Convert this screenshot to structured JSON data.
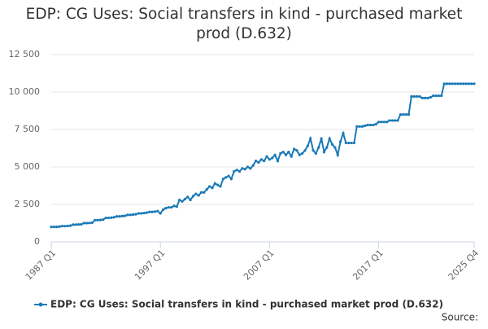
{
  "chart_data": {
    "type": "line",
    "title": "EDP: CG Uses: Social transfers in kind - purchased market prod (D.632)",
    "source": "Source:",
    "categories": [
      "1987 Q1",
      null,
      null,
      null,
      null,
      null,
      null,
      null,
      null,
      null,
      null,
      null,
      null,
      null,
      null,
      null,
      null,
      null,
      null,
      null,
      null,
      null,
      null,
      null,
      null,
      null,
      null,
      null,
      null,
      null,
      null,
      null,
      null,
      null,
      null,
      null,
      null,
      null,
      null,
      null,
      "1997 Q1",
      null,
      null,
      null,
      null,
      null,
      null,
      null,
      null,
      null,
      null,
      null,
      null,
      null,
      null,
      null,
      null,
      null,
      null,
      null,
      null,
      null,
      null,
      null,
      null,
      null,
      null,
      null,
      null,
      null,
      null,
      null,
      null,
      null,
      null,
      null,
      null,
      null,
      null,
      null,
      "2007 Q1",
      null,
      null,
      null,
      null,
      null,
      null,
      null,
      null,
      null,
      null,
      null,
      null,
      null,
      null,
      null,
      null,
      null,
      null,
      null,
      null,
      null,
      null,
      null,
      null,
      null,
      null,
      null,
      null,
      null,
      null,
      null,
      null,
      null,
      null,
      null,
      null,
      null,
      null,
      null,
      "2017 Q1",
      null,
      null,
      null,
      null,
      null,
      null,
      null,
      null,
      null,
      null,
      null,
      null,
      null,
      null,
      null,
      null,
      null,
      null,
      null,
      null,
      null,
      null,
      null,
      null,
      null,
      null,
      null,
      null,
      null,
      null,
      null,
      null,
      null,
      null,
      "2025 Q4"
    ],
    "series": [
      {
        "name": "EDP: CG Uses: Social transfers in kind - purchased market prod (D.632)",
        "color": "#1a7ab8",
        "values": [
          1000,
          1000,
          1000,
          1020,
          1050,
          1050,
          1060,
          1080,
          1150,
          1150,
          1160,
          1170,
          1250,
          1250,
          1260,
          1280,
          1450,
          1450,
          1460,
          1480,
          1600,
          1600,
          1620,
          1640,
          1700,
          1700,
          1720,
          1740,
          1800,
          1800,
          1820,
          1840,
          1900,
          1900,
          1920,
          1950,
          2000,
          2000,
          2020,
          2050,
          1900,
          2150,
          2250,
          2300,
          2300,
          2400,
          2350,
          2800,
          2700,
          2850,
          3000,
          2800,
          3050,
          3200,
          3100,
          3300,
          3300,
          3500,
          3700,
          3600,
          3900,
          3800,
          3700,
          4200,
          4300,
          4400,
          4200,
          4700,
          4800,
          4700,
          4900,
          4850,
          5000,
          4900,
          5100,
          5400,
          5300,
          5500,
          5400,
          5700,
          5500,
          5600,
          5800,
          5400,
          5900,
          6000,
          5800,
          6000,
          5700,
          6200,
          6100,
          5800,
          5900,
          6100,
          6400,
          6900,
          6100,
          5900,
          6300,
          6900,
          6000,
          6300,
          6900,
          6500,
          6300,
          5800,
          6700,
          7250,
          6600,
          6600,
          6600,
          6600,
          7700,
          7700,
          7700,
          7750,
          7800,
          7800,
          7800,
          7850,
          8000,
          8000,
          8000,
          8000,
          8100,
          8100,
          8100,
          8100,
          8500,
          8500,
          8500,
          8500,
          9700,
          9700,
          9700,
          9700,
          9600,
          9600,
          9600,
          9650,
          9750,
          9750,
          9750,
          9750,
          10550,
          10550,
          10550,
          10550,
          10550,
          10550,
          10550,
          10550,
          10550,
          10550,
          10550,
          10550
        ]
      }
    ],
    "ylim": [
      0,
      12500
    ],
    "yticks": [
      0,
      {
        "value": 2500,
        "label": "2 500"
      },
      {
        "value": 5000,
        "label": "5 000"
      },
      {
        "value": 7500,
        "label": "7 500"
      },
      {
        "value": 10000,
        "label": "10 000"
      },
      {
        "value": 12500,
        "label": "12 500"
      }
    ],
    "grid": true
  }
}
